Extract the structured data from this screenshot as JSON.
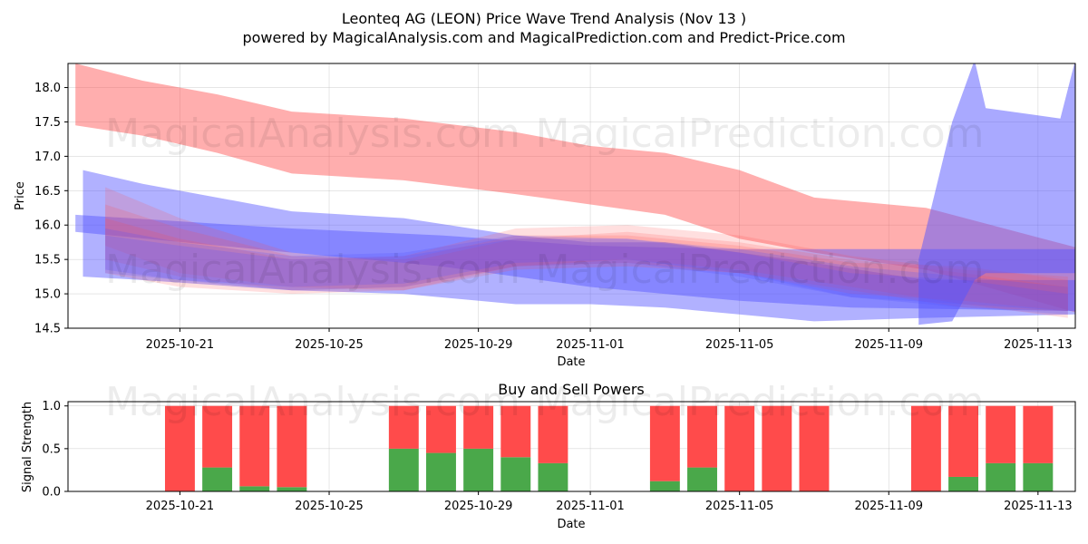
{
  "title_line1": "Leonteq AG (LEON) Price Wave Trend Analysis (Nov 13 )",
  "title_line2": "powered by MagicalAnalysis.com and MagicalPrediction.com and Predict-Price.com",
  "watermarks": [
    "MagicalAnalysis.com",
    "MagicalPrediction.com"
  ],
  "colors": {
    "red": "#ff4b4b",
    "blue": "#5353ff",
    "buy": "#4aa84a",
    "sell": "#ff4b4b"
  },
  "chart_data": [
    {
      "type": "area",
      "title": "Leonteq AG (LEON) Price Wave Trend Analysis (Nov 13 )",
      "xlabel": "Date",
      "ylabel": "Price",
      "ylim": [
        14.5,
        18.35
      ],
      "xlim": [
        "2025-10-18",
        "2025-11-14"
      ],
      "xticks": [
        "2025-10-21",
        "2025-10-25",
        "2025-10-29",
        "2025-11-01",
        "2025-11-05",
        "2025-11-09",
        "2025-11-13"
      ],
      "yticks": [
        14.5,
        15.0,
        15.5,
        16.0,
        16.5,
        17.0,
        17.5,
        18.0
      ],
      "grid": true,
      "bands": [
        {
          "color": "red",
          "opacity": 0.45,
          "x": [
            "2025-10-18.2",
            "2025-10-20",
            "2025-10-22",
            "2025-10-24",
            "2025-10-27",
            "2025-10-30",
            "2025-11-01",
            "2025-11-03",
            "2025-11-05",
            "2025-11-07",
            "2025-11-10",
            "2025-11-14.2"
          ],
          "upper": [
            18.35,
            18.1,
            17.9,
            17.65,
            17.55,
            17.35,
            17.15,
            17.05,
            16.8,
            16.4,
            16.25,
            15.65
          ],
          "lower": [
            17.45,
            17.3,
            17.05,
            16.75,
            16.65,
            16.45,
            16.3,
            16.15,
            15.8,
            15.6,
            15.35,
            14.7
          ]
        },
        {
          "color": "blue",
          "opacity": 0.45,
          "x": [
            "2025-10-18.4",
            "2025-10-20",
            "2025-10-24",
            "2025-10-27",
            "2025-10-30",
            "2025-11-01",
            "2025-11-03",
            "2025-11-07",
            "2025-11-10",
            "2025-11-14"
          ],
          "upper": [
            16.8,
            16.6,
            16.2,
            16.1,
            15.85,
            15.75,
            15.75,
            15.45,
            15.2,
            15.2
          ],
          "lower": [
            15.25,
            15.2,
            15.05,
            15.0,
            14.85,
            14.85,
            14.8,
            14.6,
            14.65,
            14.7
          ]
        },
        {
          "color": "blue",
          "opacity": 0.45,
          "x": [
            "2025-10-18.2",
            "2025-10-24",
            "2025-10-28",
            "2025-11-01",
            "2025-11-05",
            "2025-11-08",
            "2025-11-14"
          ],
          "upper": [
            16.15,
            15.95,
            15.85,
            15.7,
            15.65,
            15.65,
            15.65
          ],
          "lower": [
            15.9,
            15.6,
            15.4,
            15.1,
            14.9,
            14.8,
            14.75
          ]
        },
        {
          "color": "red",
          "opacity": 0.18,
          "x": [
            "2025-10-19",
            "2025-10-21",
            "2025-10-24",
            "2025-10-27",
            "2025-10-30",
            "2025-11-02",
            "2025-11-05",
            "2025-11-08",
            "2025-11-11",
            "2025-11-13.8"
          ],
          "upper": [
            16.1,
            15.8,
            15.5,
            15.55,
            15.95,
            16.0,
            15.85,
            15.55,
            15.35,
            15.25
          ],
          "lower": [
            15.3,
            15.1,
            15.0,
            15.05,
            15.35,
            15.4,
            15.3,
            15.05,
            14.8,
            14.75
          ]
        },
        {
          "color": "red",
          "opacity": 0.18,
          "x": [
            "2025-10-19",
            "2025-10-21",
            "2025-10-24",
            "2025-10-27",
            "2025-10-30",
            "2025-11-02",
            "2025-11-05",
            "2025-11-08",
            "2025-11-11",
            "2025-11-13.8"
          ],
          "upper": [
            16.55,
            16.1,
            15.6,
            15.45,
            15.8,
            15.9,
            15.75,
            15.5,
            15.3,
            15.1
          ],
          "lower": [
            15.7,
            15.3,
            15.1,
            15.05,
            15.4,
            15.5,
            15.35,
            15.1,
            14.85,
            14.65
          ]
        },
        {
          "color": "red",
          "opacity": 0.18,
          "x": [
            "2025-10-19",
            "2025-10-21",
            "2025-10-24",
            "2025-10-27",
            "2025-10-30",
            "2025-11-02",
            "2025-11-05",
            "2025-11-08",
            "2025-11-11",
            "2025-11-13.8"
          ],
          "upper": [
            16.3,
            15.95,
            15.55,
            15.5,
            15.85,
            15.85,
            15.7,
            15.45,
            15.4,
            15.2
          ],
          "lower": [
            15.5,
            15.25,
            15.05,
            15.1,
            15.4,
            15.45,
            15.3,
            15.0,
            14.9,
            14.75
          ]
        },
        {
          "color": "blue",
          "opacity": 0.22,
          "x": [
            "2025-10-19",
            "2025-10-21",
            "2025-10-24",
            "2025-10-27",
            "2025-10-30",
            "2025-11-02",
            "2025-11-05",
            "2025-11-08",
            "2025-11-11",
            "2025-11-13.8"
          ],
          "upper": [
            15.95,
            15.75,
            15.55,
            15.6,
            15.85,
            15.8,
            15.65,
            15.4,
            15.25,
            15.1
          ],
          "lower": [
            15.35,
            15.2,
            15.05,
            15.1,
            15.4,
            15.45,
            15.25,
            14.95,
            14.85,
            14.75
          ]
        },
        {
          "color": "blue",
          "opacity": 0.22,
          "x": [
            "2025-10-19",
            "2025-10-21",
            "2025-10-24",
            "2025-10-27",
            "2025-10-30",
            "2025-11-02",
            "2025-11-05",
            "2025-11-08",
            "2025-11-11",
            "2025-11-13.8"
          ],
          "upper": [
            15.85,
            15.7,
            15.5,
            15.55,
            15.8,
            15.8,
            15.6,
            15.3,
            15.2,
            15.0
          ],
          "lower": [
            15.3,
            15.2,
            15.1,
            15.15,
            15.45,
            15.5,
            15.3,
            14.95,
            14.8,
            14.7
          ]
        },
        {
          "color": "blue",
          "opacity": 0.5,
          "x": [
            "2025-11-09.8",
            "2025-11-10.7",
            "2025-11-11.3",
            "2025-11-11.6",
            "2025-11-13.6",
            "2025-11-14"
          ],
          "upper": [
            15.5,
            17.5,
            18.4,
            17.7,
            17.55,
            18.4
          ],
          "lower": [
            14.55,
            14.6,
            15.2,
            15.3,
            15.3,
            15.3
          ]
        }
      ]
    },
    {
      "type": "bar",
      "title": "Buy and Sell Powers",
      "xlabel": "Date",
      "ylabel": "Signal Strength",
      "ylim": [
        0,
        1.05
      ],
      "yticks": [
        0.0,
        0.5,
        1.0
      ],
      "xticks": [
        "2025-10-21",
        "2025-10-25",
        "2025-10-29",
        "2025-11-01",
        "2025-11-05",
        "2025-11-09",
        "2025-11-13"
      ],
      "dates": [
        "2025-10-21",
        "2025-10-22",
        "2025-10-23",
        "2025-10-24",
        "2025-10-27",
        "2025-10-28",
        "2025-10-29",
        "2025-10-30",
        "2025-10-31",
        "2025-11-03",
        "2025-11-04",
        "2025-11-05",
        "2025-11-06",
        "2025-11-07",
        "2025-11-10",
        "2025-11-11",
        "2025-11-12",
        "2025-11-13"
      ],
      "series": [
        {
          "name": "Buy",
          "values": [
            0.0,
            0.28,
            0.06,
            0.05,
            0.5,
            0.45,
            0.5,
            0.4,
            0.33,
            0.12,
            0.28,
            0.0,
            0.0,
            0.0,
            0.0,
            0.17,
            0.33,
            0.33
          ]
        },
        {
          "name": "Sell",
          "values": [
            1.0,
            0.72,
            0.94,
            0.95,
            0.5,
            0.55,
            0.5,
            0.6,
            0.67,
            0.88,
            0.72,
            1.0,
            1.0,
            1.0,
            1.0,
            0.83,
            0.67,
            0.67
          ]
        }
      ]
    }
  ]
}
